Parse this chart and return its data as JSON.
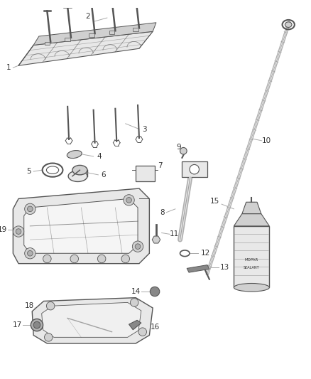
{
  "bg_color": "#ffffff",
  "lc": "#555555",
  "lc_dark": "#333333",
  "lc_light": "#aaaaaa",
  "gray1": "#e8e8e8",
  "gray2": "#d0d0d0",
  "gray3": "#b0b0b0",
  "gray4": "#888888",
  "fig_w": 4.38,
  "fig_h": 5.33,
  "dpi": 100,
  "font_size": 7.5
}
